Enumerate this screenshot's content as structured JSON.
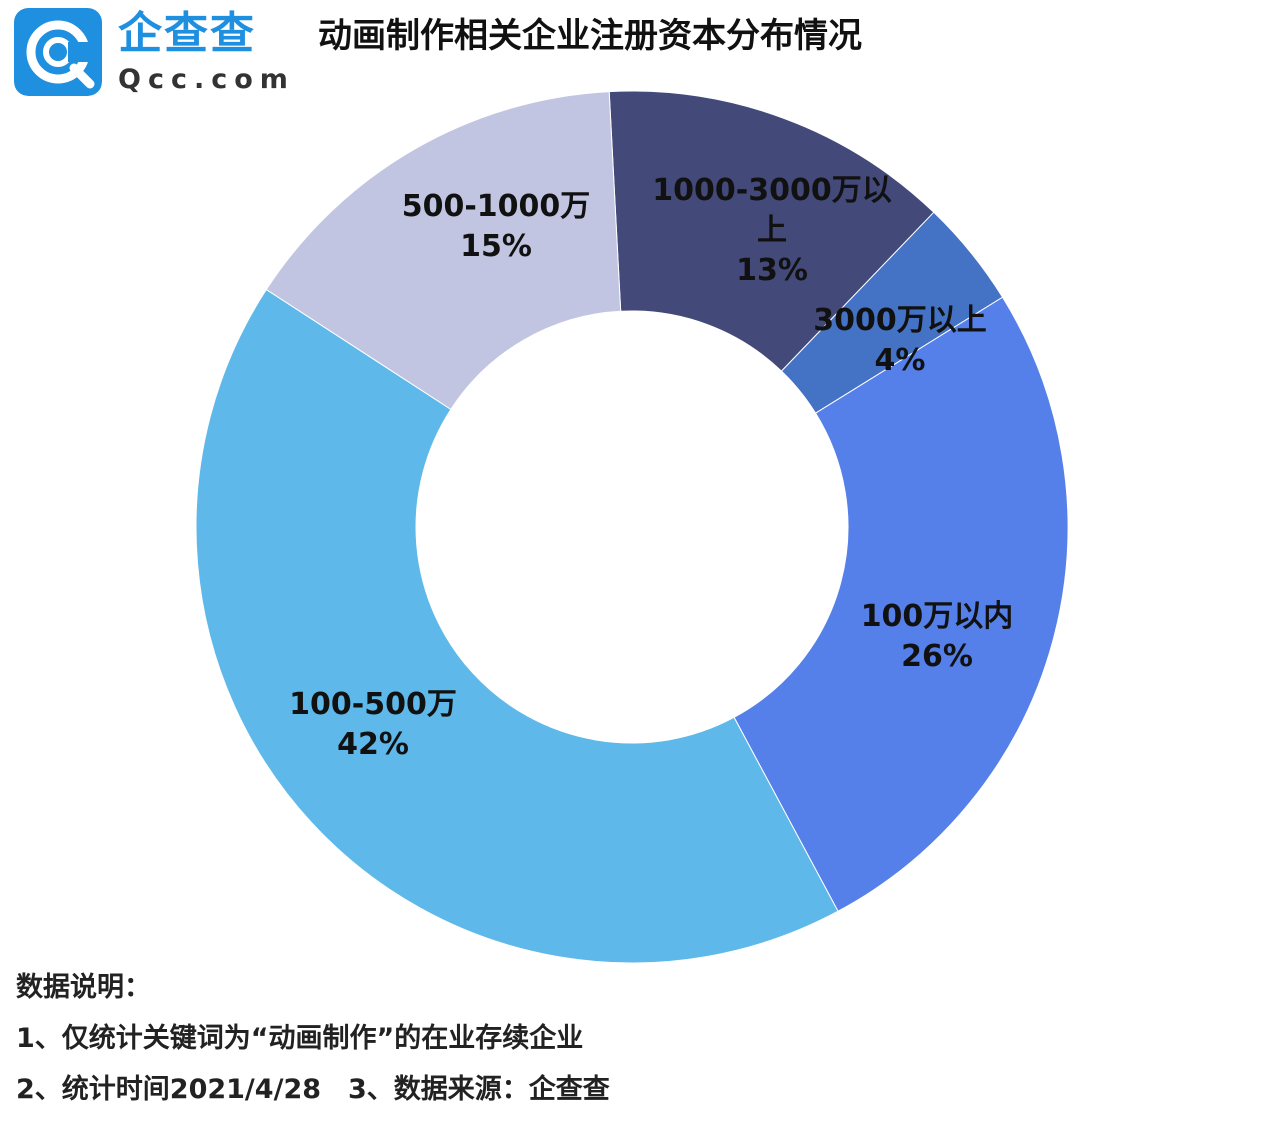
{
  "logo": {
    "cn": "企查查",
    "en": "Qcc.com",
    "badge_color": "#1f8fe0"
  },
  "title": "动画制作相关企业注册资本分布情况",
  "chart_data": {
    "type": "pie",
    "donut": true,
    "title": "动画制作相关企业注册资本分布情况",
    "slices": [
      {
        "label": "1000-3000万以上",
        "value": 13,
        "display": "13%",
        "color": "#434a79"
      },
      {
        "label": "3000万以上",
        "value": 4,
        "display": "4%",
        "color": "#4472c4"
      },
      {
        "label": "100万以内",
        "value": 26,
        "display": "26%",
        "color": "#5580e9"
      },
      {
        "label": "100-500万",
        "value": 42,
        "display": "42%",
        "color": "#5eb8e9"
      },
      {
        "label": "500-1000万",
        "value": 15,
        "display": "15%",
        "color": "#c2c5e2"
      }
    ]
  },
  "notes": {
    "heading": "数据说明：",
    "line1": "1、仅统计关键词为“动画制作”的在业存续企业",
    "line2": "2、统计时间2021/4/28　3、数据来源：企查查"
  }
}
